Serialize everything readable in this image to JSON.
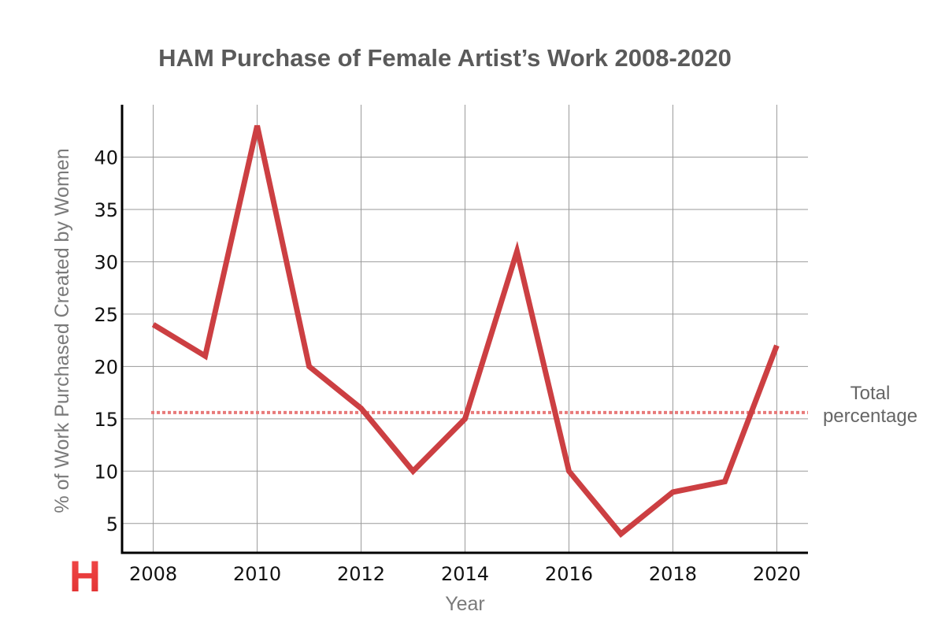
{
  "chart_data": {
    "type": "line",
    "title": "HAM Purchase of Female Artist’s Work 2008-2020",
    "xlabel": "Year",
    "ylabel": "% of Work Purchased Created by Women",
    "x": [
      2008,
      2009,
      2010,
      2011,
      2012,
      2013,
      2014,
      2015,
      2016,
      2017,
      2018,
      2019,
      2020
    ],
    "series": [
      {
        "values": [
          24,
          21,
          43,
          20,
          16,
          10,
          15,
          31,
          10,
          4,
          8,
          9,
          22
        ],
        "color": "#cc3f42"
      }
    ],
    "x_ticks": [
      "2008",
      "2010",
      "2012",
      "2014",
      "2016",
      "2018",
      "2020"
    ],
    "y_ticks": [
      "5",
      "10",
      "15",
      "20",
      "25",
      "30",
      "35",
      "40"
    ],
    "xlim": [
      2007.4,
      2020.6
    ],
    "ylim": [
      2.2,
      45
    ],
    "grid": true,
    "reference_line": {
      "label": "Total percentage",
      "label_lines": [
        "Total",
        "percentage"
      ],
      "value": 15.6,
      "color": "#e87a7a",
      "style": "dotted"
    }
  },
  "logo": {
    "letter": "H",
    "color": "#e02f2f"
  }
}
